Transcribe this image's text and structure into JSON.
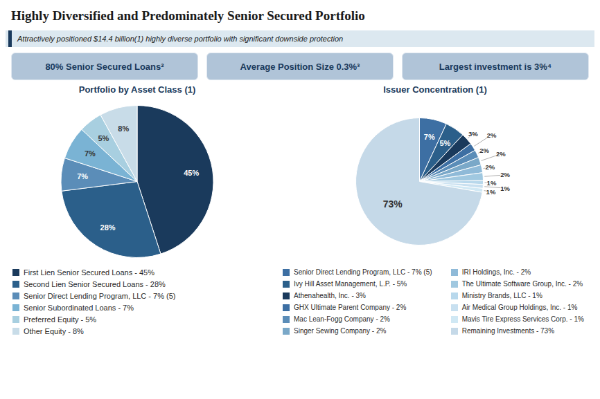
{
  "title": "Highly Diversified and Predominately Senior Secured Portfolio",
  "subtitle": "Attractively positioned $14.4 billion(1) highly diverse portfolio with significant downside protection",
  "annotations": [
    "80% Senior Secured Loans²",
    "Average Position Size 0.3%³",
    "Largest investment is 3%⁴"
  ],
  "chart_data": [
    {
      "type": "pie",
      "title": "Portfolio by Asset Class (1)",
      "categories": [
        "First Lien Senior Secured Loans - 45%",
        "Second Lien Senior Secured Loans - 28%",
        "Senior Direct Lending Program, LLC - 7% (5)",
        "Senior Subordinated Loans - 7%",
        "Preferred Equity - 5%",
        "Other Equity - 8%"
      ],
      "values": [
        45,
        28,
        7,
        7,
        5,
        8
      ],
      "value_labels": [
        "45%",
        "28%",
        "7%",
        "7%",
        "5%",
        "8%"
      ],
      "colors": [
        "#1a3a5c",
        "#2b5f8a",
        "#5b8db8",
        "#7ab3d4",
        "#a8cfe0",
        "#c8dce8"
      ],
      "data_labels": true,
      "legend": "bottom"
    },
    {
      "type": "pie",
      "title": "Issuer Concentration (1)",
      "categories": [
        "Senior Direct Lending Program, LLC - 7% (5)",
        "Ivy Hill Asset Management, L.P. - 5%",
        "Athenahealth, Inc. - 3%",
        "GHX Ultimate Parent Company - 2%",
        "Mac Lean-Fogg Company - 2%",
        "Singer Sewing Company - 2%",
        "IRI Holdings, Inc. - 2%",
        "The Ultimate Software Group, Inc. - 2%",
        "Ministry Brands, LLC - 1%",
        "Air Medical Group Holdings, Inc. - 1%",
        "Mavis Tire Express Services Corp. - 1%",
        "Remaining Investments - 73%"
      ],
      "values": [
        7,
        5,
        3,
        2,
        2,
        2,
        2,
        2,
        1,
        1,
        1,
        73
      ],
      "value_labels": [
        "7%",
        "5%",
        "3%",
        "2%",
        "2%",
        "2%",
        "2%",
        "2%",
        "1%",
        "1%",
        "1%",
        "73%"
      ],
      "colors": [
        "#3d6fa3",
        "#2b5f8a",
        "#1a3a5c",
        "#3d6fa3",
        "#5b8db8",
        "#7aa8c8",
        "#8fbad8",
        "#a0c8e0",
        "#b8d8ec",
        "#c8e0f0",
        "#d0e8f4",
        "#c5d9e8"
      ],
      "data_labels": true,
      "legend": "bottom"
    }
  ]
}
